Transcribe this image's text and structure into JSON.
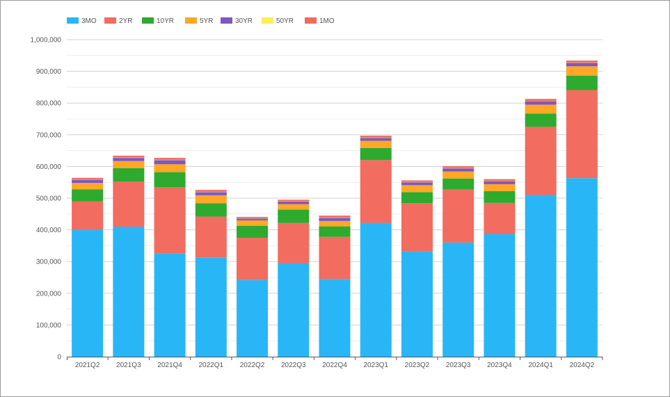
{
  "chart_data": {
    "type": "bar",
    "stacked": true,
    "categories": [
      "2021Q2",
      "2021Q3",
      "2021Q4",
      "2022Q1",
      "2022Q2",
      "2022Q3",
      "2022Q4",
      "2023Q1",
      "2023Q2",
      "2023Q3",
      "2023Q4",
      "2024Q1",
      "2024Q2"
    ],
    "series": [
      {
        "name": "3MO",
        "color": "#29b6f6",
        "values": [
          400000,
          410000,
          325000,
          312000,
          242000,
          295000,
          245000,
          422000,
          332000,
          360000,
          387000,
          510000,
          563000
        ]
      },
      {
        "name": "2YR",
        "color": "#f26c5f",
        "values": [
          90000,
          142000,
          210000,
          130000,
          133000,
          127000,
          133000,
          198000,
          152000,
          167000,
          98000,
          215000,
          278000
        ]
      },
      {
        "name": "10YR",
        "color": "#2eaa2e",
        "values": [
          38000,
          43000,
          47000,
          42000,
          38000,
          42000,
          33000,
          38000,
          35000,
          35000,
          37000,
          42000,
          45000
        ]
      },
      {
        "name": "5YR",
        "color": "#ffa726",
        "values": [
          20000,
          22000,
          25000,
          25000,
          17000,
          17000,
          17000,
          23000,
          22000,
          22000,
          22000,
          28000,
          30000
        ]
      },
      {
        "name": "30YR",
        "color": "#7e57c2",
        "values": [
          10000,
          10000,
          13000,
          10000,
          6000,
          8000,
          10000,
          9000,
          9000,
          10000,
          10000,
          11000,
          11000
        ]
      },
      {
        "name": "50YR",
        "color": "#ffee58",
        "values": [
          1000,
          1000,
          1000,
          1000,
          1000,
          1000,
          1000,
          1000,
          1000,
          1000,
          1000,
          1000,
          1000
        ]
      },
      {
        "name": "1MO",
        "color": "#ef6c5a",
        "values": [
          5000,
          6000,
          6000,
          6000,
          4000,
          5000,
          6000,
          6000,
          5000,
          6000,
          5000,
          6000,
          6000
        ]
      }
    ],
    "legend_order": [
      "3MO",
      "2YR",
      "10YR",
      "5YR",
      "30YR",
      "50YR",
      "1MO"
    ],
    "legend_position": "top-left",
    "ylim": [
      0,
      1000000
    ],
    "yticks": [
      0,
      100000,
      200000,
      300000,
      400000,
      500000,
      600000,
      700000,
      800000,
      900000,
      1000000
    ],
    "ytick_labels": [
      "0",
      "100,000",
      "200,000",
      "300,000",
      "400,000",
      "500,000",
      "600,000",
      "700,000",
      "800,000",
      "900,000",
      "1,000,000"
    ],
    "grid": true,
    "title": "",
    "xlabel": "",
    "ylabel": ""
  }
}
